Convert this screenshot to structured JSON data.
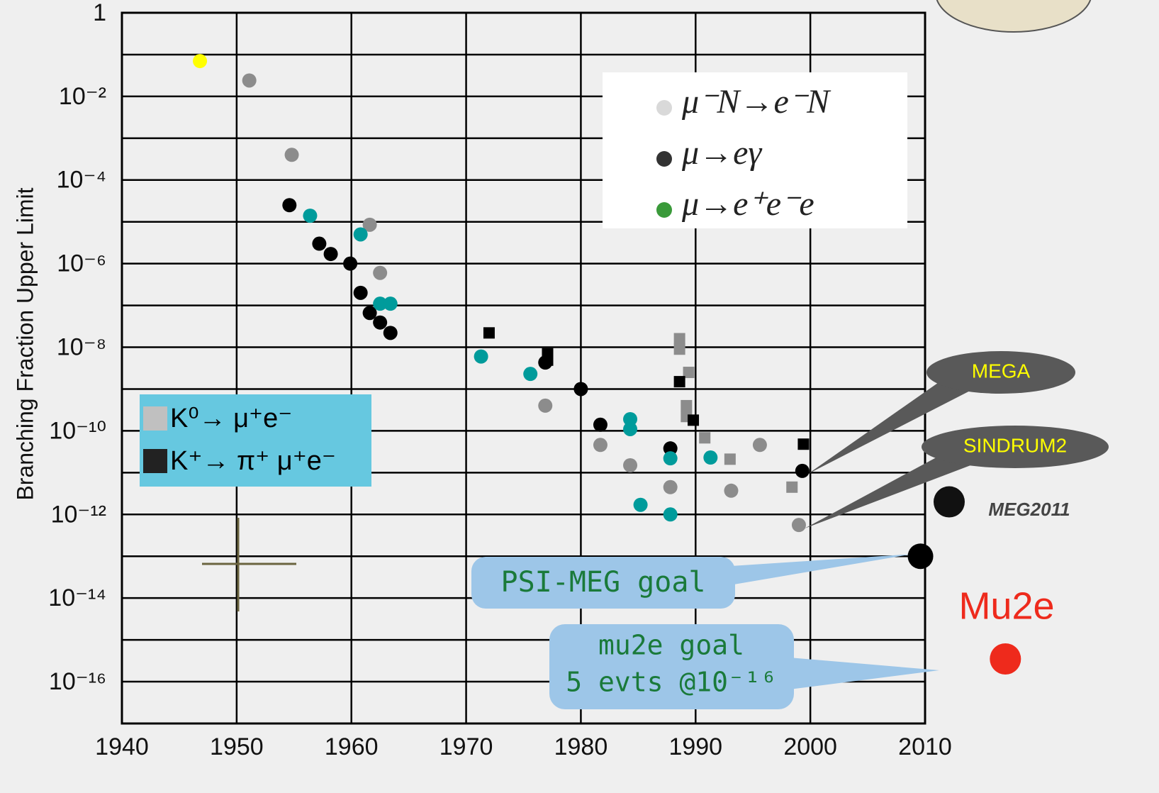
{
  "chart_data": {
    "type": "scatter",
    "y_label": "Branching Fraction Upper Limit",
    "log_y": true,
    "grid": true,
    "xlim": [
      1940,
      2010
    ],
    "xticks": [
      1940,
      1950,
      1960,
      1970,
      1980,
      1990,
      2000,
      2010
    ],
    "ylim": [
      1e-17,
      1
    ],
    "yticks": [
      1,
      {
        "value": 0.01,
        "label": "10⁻²"
      },
      {
        "value": 0.0001,
        "label": "10⁻⁴"
      },
      {
        "value": 1e-06,
        "label": "10⁻⁶"
      },
      {
        "value": 1e-08,
        "label": "10⁻⁸"
      },
      {
        "value": 1e-10,
        "label": "10⁻¹⁰"
      },
      {
        "value": 1e-12,
        "label": "10⁻¹²"
      },
      {
        "value": 1e-14,
        "label": "10⁻¹⁴"
      },
      {
        "value": 1e-16,
        "label": "10⁻¹⁶"
      }
    ],
    "y_gridlines": [
      0.1,
      0.001,
      1e-05,
      1e-07,
      1e-09,
      1e-11,
      1e-13,
      1e-15
    ],
    "series": [
      {
        "name": "μ⁻N→e⁻N",
        "marker": "circle",
        "color": "#8c8c8c",
        "legend_color": "#d9d9d9",
        "x": [
          1951.1,
          1954.8,
          1961.6,
          1962.5,
          1976.9,
          1981.7,
          1984.3,
          1987.8,
          1993.1,
          1995.6,
          1999.0
        ],
        "values": [
          0.024,
          0.0004,
          8.5e-06,
          6e-07,
          4e-10,
          4.6e-11,
          1.5e-11,
          4.5e-12,
          3.7e-12,
          4.6e-11,
          5.6e-13
        ]
      },
      {
        "name": "μ→eγ",
        "marker": "circle",
        "color": "#000000",
        "legend_color": "#333333",
        "x": [
          1954.6,
          1957.2,
          1958.2,
          1959.9,
          1960.8,
          1961.6,
          1962.5,
          1963.4,
          1976.9,
          1980.0,
          1981.7,
          1987.8,
          1999.3
        ],
        "values": [
          2.5e-05,
          3e-06,
          1.7e-06,
          1e-06,
          2e-07,
          6.6e-08,
          3.9e-08,
          2.2e-08,
          4.3e-09,
          1e-09,
          1.4e-10,
          3.8e-11,
          1.1e-11
        ]
      },
      {
        "name": "μ→e⁺e⁻e",
        "marker": "circle",
        "color": "#009b9b",
        "legend_color": "#3a9a3a",
        "x": [
          1956.4,
          1960.8,
          1962.5,
          1963.4,
          1971.3,
          1975.6,
          1984.3,
          1984.3,
          1985.2,
          1987.8,
          1991.3,
          1987.8
        ],
        "values": [
          1.4e-05,
          5e-06,
          1.1e-07,
          1.1e-07,
          6e-09,
          2.3e-09,
          1.9e-10,
          1.1e-10,
          1.7e-12,
          2.2e-11,
          2.3e-11,
          1e-12
        ]
      },
      {
        "marker": "circle",
        "color": "#ffff00",
        "x": [
          1946.8
        ],
        "values": [
          0.07
        ]
      },
      {
        "name": "K⁰→ μ⁺e⁻",
        "marker": "square",
        "color": "#8c8c8c",
        "legend_color": "#c0c0c0",
        "x": [
          1988.6,
          1988.6,
          1989.4,
          1989.2,
          1989.2,
          1990.8,
          1993.0,
          1998.4
        ],
        "values": [
          1.6e-08,
          9e-09,
          2.5e-09,
          4e-10,
          2.2e-10,
          6.8e-11,
          2.1e-11,
          4.5e-12
        ]
      },
      {
        "name": "K⁺→ π⁺ μ⁺e⁻",
        "marker": "square",
        "color": "#000000",
        "legend_color": "#222222",
        "x": [
          1972.0,
          1977.1,
          1977.1,
          1988.6,
          1989.8,
          1999.4
        ],
        "values": [
          2.2e-08,
          7e-09,
          4.9e-09,
          1.5e-09,
          1.8e-10,
          4.8e-11
        ]
      }
    ],
    "annotations": [
      {
        "text": "MEGA"
      },
      {
        "text": "SINDRUM2"
      },
      {
        "text": "MEG2011",
        "x": 2012.1,
        "y": 2e-12,
        "color": "#111111"
      },
      {
        "text": "PSI-MEG goal",
        "x": 2009.6,
        "y": 1e-13,
        "color": "#000000"
      },
      {
        "text": [
          "mu2e goal",
          "5 evts @10⁻¹⁶"
        ]
      },
      {
        "text": "Mu2e",
        "x": 2017,
        "y": 3.5e-16,
        "color": "#ee2a1c"
      }
    ]
  }
}
